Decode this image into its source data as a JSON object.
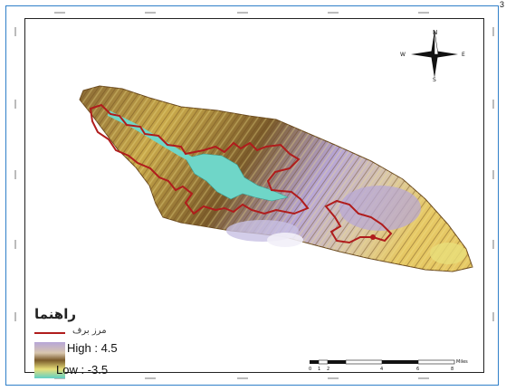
{
  "map": {
    "legend": {
      "title": "راهنما",
      "boundary_label": "مرز برف",
      "high_label": "High : 4.5",
      "low_label": "Low : -3.5",
      "boundary_color": "#b01c1c"
    },
    "north_arrow": {
      "n": "N",
      "s": "S",
      "e": "E",
      "w": "W"
    },
    "scale_bar": {
      "ticks": [
        "0",
        "1",
        "2",
        "4",
        "6",
        "8"
      ],
      "unit": "Miles"
    },
    "colors": {
      "ramp": [
        "#b7a6d8",
        "#d8c6ad",
        "#7a5a2a",
        "#c9a94a",
        "#e8df7a",
        "#bfe9b8",
        "#5fd0c6"
      ],
      "lake": "#6fd6c8",
      "frame": "#2f7fc9"
    },
    "corner_text": "3"
  }
}
